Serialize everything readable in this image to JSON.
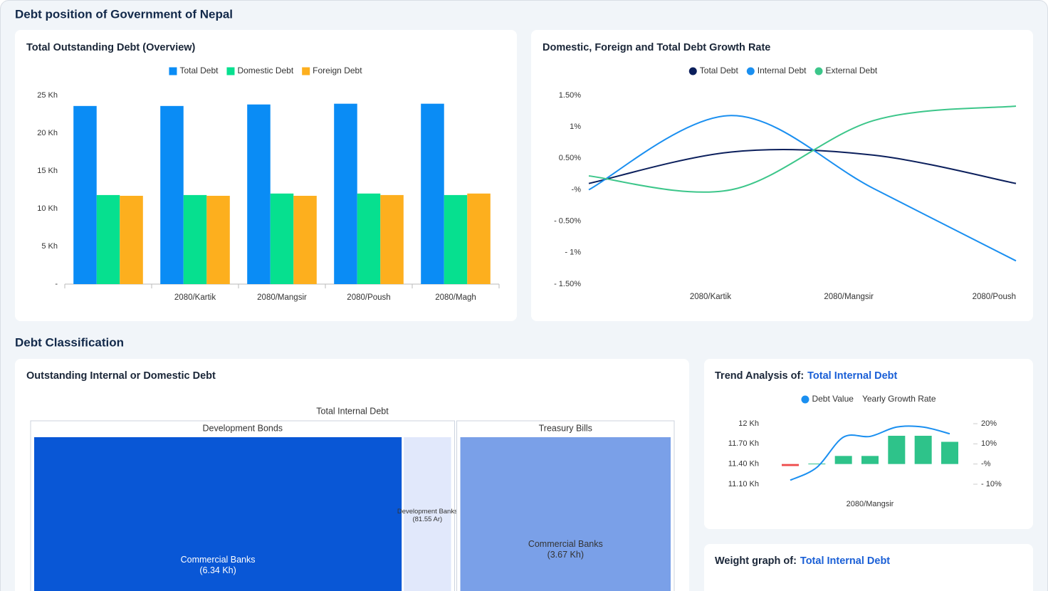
{
  "header": {
    "title": "Debt position of Government of Nepal"
  },
  "section": {
    "title": "Debt Classification"
  },
  "chart_data": [
    {
      "type": "bar",
      "title": "Total Outstanding Debt (Overview)",
      "categories": [
        null,
        "2080/Kartik",
        "2080/Mangsir",
        "2080/Poush",
        "2080/Magh"
      ],
      "series": [
        {
          "name": "Total Debt",
          "color": "#0a8cf5",
          "values": [
            23.6,
            23.6,
            23.8,
            23.9,
            23.9
          ]
        },
        {
          "name": "Domestic Debt",
          "color": "#06e08f",
          "values": [
            11.8,
            11.8,
            12.0,
            12.0,
            11.8
          ]
        },
        {
          "name": "Foreign Debt",
          "color": "#fdaf1e",
          "values": [
            11.7,
            11.7,
            11.7,
            11.8,
            12.0
          ]
        }
      ],
      "ylim": [
        0,
        25
      ],
      "yticks": [
        {
          "value": 0,
          "label": "-"
        },
        {
          "value": 5,
          "label": "5 Kh"
        },
        {
          "value": 10,
          "label": "10 Kh"
        },
        {
          "value": 15,
          "label": "15 Kh"
        },
        {
          "value": 20,
          "label": "20 Kh"
        },
        {
          "value": 25,
          "label": "25 Kh"
        }
      ],
      "legend": "top"
    },
    {
      "type": "line",
      "title": "Domestic, Foreign and Total Debt Growth Rate",
      "categories": [
        null,
        "2080/Kartik",
        "2080/Mangsir",
        "2080/Poush"
      ],
      "series": [
        {
          "name": "Total Debt",
          "color": "#0b1f5c",
          "values": [
            0.1,
            0.6,
            0.55,
            0.1
          ]
        },
        {
          "name": "Internal Debt",
          "color": "#1a8ff0",
          "values": [
            0,
            1.18,
            0.02,
            -1.13
          ]
        },
        {
          "name": "External Debt",
          "color": "#3cc68a",
          "values": [
            0.22,
            0.0,
            1.1,
            1.33
          ]
        }
      ],
      "ylim": [
        -1.5,
        1.5
      ],
      "yticks": [
        {
          "value": -1.5,
          "label": "- 1.50%"
        },
        {
          "value": -1,
          "label": "- 1%"
        },
        {
          "value": -0.5,
          "label": "- 0.50%"
        },
        {
          "value": 0,
          "label": "-%"
        },
        {
          "value": 0.5,
          "label": "0.50%"
        },
        {
          "value": 1,
          "label": "1%"
        },
        {
          "value": 1.5,
          "label": "1.50%"
        }
      ],
      "smooth": true,
      "legend": "top"
    },
    {
      "type": "treemap",
      "title": "Outstanding Internal or Domestic Debt",
      "root": "Total Internal Debt",
      "groups": [
        {
          "name": "Development Bonds",
          "children": [
            {
              "name": "Commercial Banks",
              "value": 6.34,
              "value_label": "(6.34 Kh)",
              "color": "#0957d6"
            },
            {
              "name": "Development Banks",
              "value": 0.8155,
              "value_label": "(81.55 Ar)",
              "color": "#e1e8fb"
            }
          ]
        },
        {
          "name": "Treasury Bills",
          "children": [
            {
              "name": "Commercial Banks",
              "value": 3.67,
              "value_label": "(3.67 Kh)",
              "color": "#7aa0e8"
            }
          ]
        }
      ]
    },
    {
      "type": "combo",
      "title": "Trend Analysis of:",
      "title_highlight": "Total Internal Debt",
      "categories": [
        null,
        null,
        null,
        "2080/Mangsir",
        null,
        null,
        null
      ],
      "series": [
        {
          "name": "Debt Value",
          "type": "line",
          "color": "#1a8ff0",
          "values": [
            11.16,
            11.35,
            11.8,
            11.81,
            11.95,
            11.95,
            11.85
          ]
        },
        {
          "name": "Yearly Growth Rate",
          "type": "bar",
          "axis": "y2",
          "color": "#2ec38a",
          "negative_color": "#ee4b4b",
          "values": [
            -1,
            0.2,
            4,
            4,
            14,
            14,
            11
          ]
        }
      ],
      "ylim": [
        11.1,
        12
      ],
      "yticks": [
        {
          "value": 11.1,
          "label": "11.10 Kh"
        },
        {
          "value": 11.4,
          "label": "11.40 Kh"
        },
        {
          "value": 11.7,
          "label": "11.70 Kh"
        },
        {
          "value": 12,
          "label": "12 Kh"
        }
      ],
      "y2lim": [
        -10,
        20
      ],
      "y2ticks": [
        {
          "value": -10,
          "label": "- 10%"
        },
        {
          "value": 0,
          "label": "-%"
        },
        {
          "value": 10,
          "label": "10%"
        },
        {
          "value": 20,
          "label": "20%"
        }
      ]
    }
  ],
  "weight_card": {
    "title": "Weight graph of:",
    "title_highlight": "Total Internal Debt"
  }
}
